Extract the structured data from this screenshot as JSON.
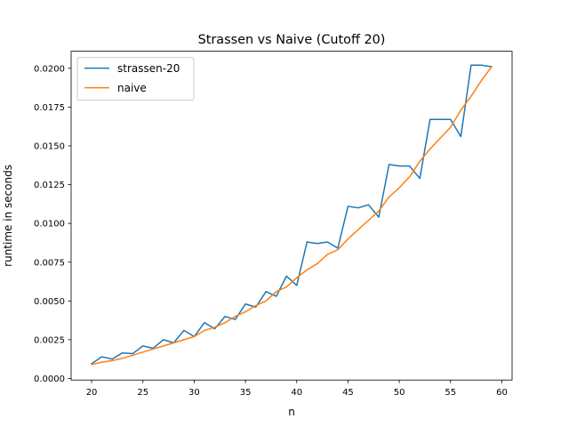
{
  "chart_data": {
    "type": "line",
    "title": "Strassen vs Naive (Cutoff 20)",
    "xlabel": "n",
    "ylabel": "runtime in seconds",
    "xlim": [
      18,
      61
    ],
    "ylim": [
      -0.0001,
      0.0211
    ],
    "xticks": [
      20,
      25,
      30,
      35,
      40,
      45,
      50,
      55,
      60
    ],
    "xtick_labels": [
      "20",
      "25",
      "30",
      "35",
      "40",
      "45",
      "50",
      "55",
      "60"
    ],
    "yticks": [
      0,
      0.0025,
      0.005,
      0.0075,
      0.01,
      0.0125,
      0.015,
      0.0175,
      0.02
    ],
    "ytick_labels": [
      "0.0000",
      "0.0025",
      "0.0050",
      "0.0075",
      "0.0100",
      "0.0125",
      "0.0150",
      "0.0175",
      "0.0200"
    ],
    "grid": false,
    "legend_position": "top-left",
    "x": [
      20,
      21,
      22,
      23,
      24,
      25,
      26,
      27,
      28,
      29,
      30,
      31,
      32,
      33,
      34,
      35,
      36,
      37,
      38,
      39,
      40,
      41,
      42,
      43,
      44,
      45,
      46,
      47,
      48,
      49,
      50,
      51,
      52,
      53,
      54,
      55,
      56,
      57,
      58,
      59
    ],
    "series": [
      {
        "name": "strassen-20",
        "color": "#1f77b4",
        "values": [
          0.00095,
          0.0014,
          0.00125,
          0.00165,
          0.0016,
          0.0021,
          0.00195,
          0.0025,
          0.0023,
          0.0031,
          0.0027,
          0.0036,
          0.0032,
          0.004,
          0.0038,
          0.0048,
          0.0046,
          0.0056,
          0.0053,
          0.0066,
          0.006,
          0.0088,
          0.0087,
          0.0088,
          0.0084,
          0.0111,
          0.011,
          0.0112,
          0.0104,
          0.0138,
          0.0137,
          0.0137,
          0.0129,
          0.0167,
          0.0167,
          0.0167,
          0.0156,
          0.0202,
          0.0202,
          0.0201
        ]
      },
      {
        "name": "naive",
        "color": "#ff7f0e",
        "values": [
          0.0009,
          0.00105,
          0.00115,
          0.0013,
          0.0015,
          0.0017,
          0.0019,
          0.0021,
          0.0023,
          0.0025,
          0.0027,
          0.0031,
          0.0033,
          0.0036,
          0.004,
          0.0043,
          0.0047,
          0.005,
          0.0056,
          0.0059,
          0.0065,
          0.007,
          0.0074,
          0.008,
          0.0083,
          0.009,
          0.0096,
          0.0102,
          0.0108,
          0.0117,
          0.0123,
          0.013,
          0.014,
          0.0148,
          0.0155,
          0.0162,
          0.0173,
          0.0182,
          0.0192,
          0.0201
        ]
      }
    ]
  }
}
